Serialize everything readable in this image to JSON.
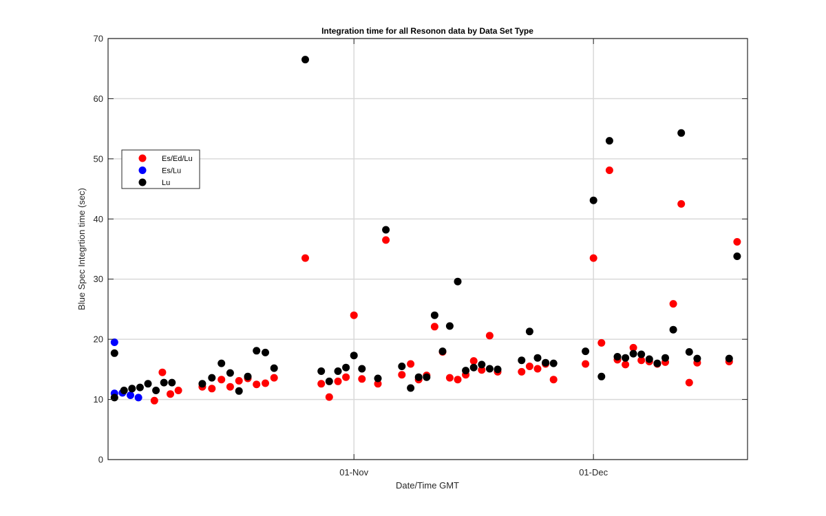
{
  "chart_data": {
    "type": "scatter",
    "title": "Integration time for all Resonon data by Data Set Type",
    "xlabel": "Date/Time GMT",
    "ylabel": "Blue Spec Integrtion time (sec)",
    "xaxis_unit": "days after 01-Oct",
    "xlim": [
      -0.8,
      79.3
    ],
    "ylim": [
      0,
      70
    ],
    "yticks": [
      0,
      10,
      20,
      30,
      40,
      50,
      60,
      70
    ],
    "xticks": [
      {
        "value": 30,
        "label": "01-Nov"
      },
      {
        "value": 60,
        "label": "01-Dec"
      }
    ],
    "grid": true,
    "legend_position": "upper-left",
    "series": [
      {
        "name": "Es/Ed/Lu",
        "color": "#ff0000",
        "points": [
          [
            5.0,
            9.8
          ],
          [
            6.0,
            14.5
          ],
          [
            7.0,
            10.9
          ],
          [
            8.0,
            11.5
          ],
          [
            11.0,
            12.1
          ],
          [
            12.2,
            11.8
          ],
          [
            13.4,
            13.3
          ],
          [
            14.5,
            12.1
          ],
          [
            15.6,
            13.1
          ],
          [
            16.7,
            13.5
          ],
          [
            17.8,
            12.5
          ],
          [
            18.9,
            12.7
          ],
          [
            20.0,
            13.6
          ],
          [
            23.9,
            33.5
          ],
          [
            25.9,
            12.6
          ],
          [
            26.9,
            10.4
          ],
          [
            28.0,
            13.0
          ],
          [
            29.0,
            13.7
          ],
          [
            30.0,
            24.0
          ],
          [
            31.0,
            13.4
          ],
          [
            33.0,
            12.6
          ],
          [
            34.0,
            36.5
          ],
          [
            36.0,
            14.1
          ],
          [
            37.1,
            15.9
          ],
          [
            38.1,
            13.3
          ],
          [
            39.1,
            14.0
          ],
          [
            40.1,
            22.1
          ],
          [
            41.1,
            17.9
          ],
          [
            42.0,
            13.6
          ],
          [
            43.0,
            13.3
          ],
          [
            44.0,
            14.1
          ],
          [
            45.0,
            16.4
          ],
          [
            46.0,
            14.9
          ],
          [
            47.0,
            20.6
          ],
          [
            48.0,
            14.6
          ],
          [
            51.0,
            14.6
          ],
          [
            52.0,
            15.5
          ],
          [
            53.0,
            15.1
          ],
          [
            54.0,
            15.9
          ],
          [
            55.0,
            13.3
          ],
          [
            59.0,
            15.9
          ],
          [
            60.0,
            33.5
          ],
          [
            61.0,
            19.4
          ],
          [
            62.0,
            48.1
          ],
          [
            63.0,
            16.6
          ],
          [
            64.0,
            15.8
          ],
          [
            65.0,
            18.6
          ],
          [
            66.0,
            16.5
          ],
          [
            67.0,
            16.3
          ],
          [
            68.0,
            15.9
          ],
          [
            69.0,
            16.2
          ],
          [
            70.0,
            25.9
          ],
          [
            71.0,
            42.5
          ],
          [
            72.0,
            12.8
          ],
          [
            73.0,
            16.1
          ],
          [
            77.0,
            16.3
          ],
          [
            78.0,
            36.2
          ]
        ]
      },
      {
        "name": "Es/Lu",
        "color": "#0000ff",
        "points": [
          [
            0.0,
            19.5
          ],
          [
            0.0,
            11.0
          ],
          [
            1.0,
            11.1
          ],
          [
            2.0,
            10.7
          ],
          [
            3.0,
            10.3
          ]
        ]
      },
      {
        "name": "Lu",
        "color": "#000000",
        "points": [
          [
            0.0,
            17.7
          ],
          [
            0.0,
            10.3
          ],
          [
            1.2,
            11.5
          ],
          [
            2.2,
            11.8
          ],
          [
            3.2,
            12.0
          ],
          [
            4.2,
            12.6
          ],
          [
            5.2,
            11.5
          ],
          [
            6.2,
            12.8
          ],
          [
            7.2,
            12.8
          ],
          [
            11.0,
            12.6
          ],
          [
            12.2,
            13.6
          ],
          [
            13.4,
            16.0
          ],
          [
            14.5,
            14.4
          ],
          [
            15.6,
            11.4
          ],
          [
            16.7,
            13.8
          ],
          [
            17.8,
            18.1
          ],
          [
            18.9,
            17.8
          ],
          [
            20.0,
            15.2
          ],
          [
            23.9,
            66.5
          ],
          [
            25.9,
            14.7
          ],
          [
            26.9,
            13.0
          ],
          [
            28.0,
            14.7
          ],
          [
            29.0,
            15.3
          ],
          [
            30.0,
            17.3
          ],
          [
            31.0,
            15.1
          ],
          [
            33.0,
            13.5
          ],
          [
            34.0,
            38.2
          ],
          [
            36.0,
            15.5
          ],
          [
            37.1,
            11.9
          ],
          [
            38.1,
            13.7
          ],
          [
            39.1,
            13.7
          ],
          [
            40.1,
            24.0
          ],
          [
            41.1,
            18.0
          ],
          [
            42.0,
            22.2
          ],
          [
            43.0,
            29.6
          ],
          [
            44.0,
            14.8
          ],
          [
            45.0,
            15.3
          ],
          [
            46.0,
            15.8
          ],
          [
            47.0,
            15.1
          ],
          [
            48.0,
            15.0
          ],
          [
            51.0,
            16.5
          ],
          [
            52.0,
            21.3
          ],
          [
            53.0,
            16.9
          ],
          [
            54.0,
            16.1
          ],
          [
            55.0,
            16.0
          ],
          [
            59.0,
            18.0
          ],
          [
            60.0,
            43.1
          ],
          [
            61.0,
            13.8
          ],
          [
            62.0,
            53.0
          ],
          [
            63.0,
            17.1
          ],
          [
            64.0,
            16.9
          ],
          [
            65.0,
            17.6
          ],
          [
            66.0,
            17.5
          ],
          [
            67.0,
            16.7
          ],
          [
            68.0,
            16.0
          ],
          [
            69.0,
            16.9
          ],
          [
            70.0,
            21.6
          ],
          [
            71.0,
            54.3
          ],
          [
            72.0,
            17.9
          ],
          [
            73.0,
            16.8
          ],
          [
            77.0,
            16.8
          ],
          [
            78.0,
            33.8
          ]
        ]
      }
    ]
  }
}
